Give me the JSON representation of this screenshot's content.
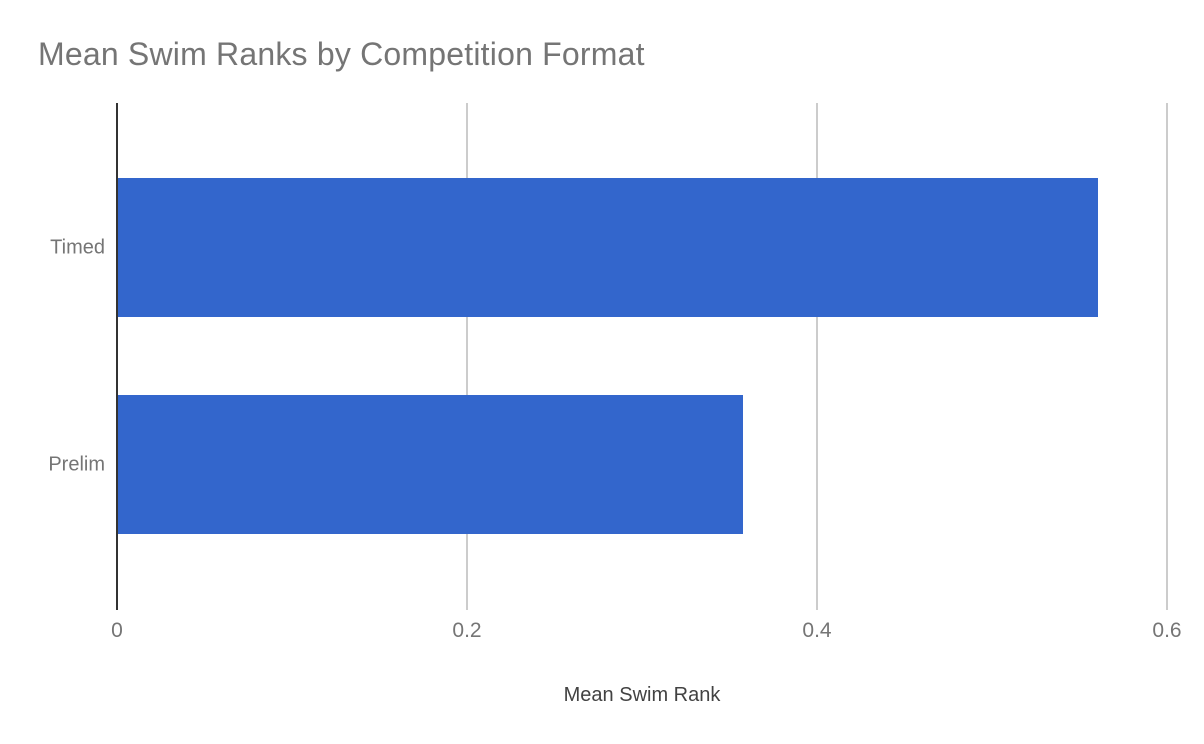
{
  "chart_data": {
    "type": "bar",
    "orientation": "horizontal",
    "title": "Mean Swim Ranks by Competition Format",
    "categories": [
      "Timed",
      "Prelim"
    ],
    "values": [
      0.56,
      0.357
    ],
    "xlabel": "Mean Swim Rank",
    "ylabel": "",
    "xlim": [
      0,
      0.6
    ],
    "xticks": [
      0,
      0.2,
      0.4,
      0.6
    ],
    "xtick_labels": [
      "0",
      "0.2",
      "0.4",
      "0.6"
    ],
    "grid": true,
    "legend": false
  },
  "colors": {
    "bar": "#3366cc",
    "title": "#757575",
    "tick_label": "#757575",
    "category_label": "#757575",
    "axis_label": "#424242",
    "gridline": "#cccccc",
    "axis_line": "#333333",
    "background": "#ffffff"
  }
}
